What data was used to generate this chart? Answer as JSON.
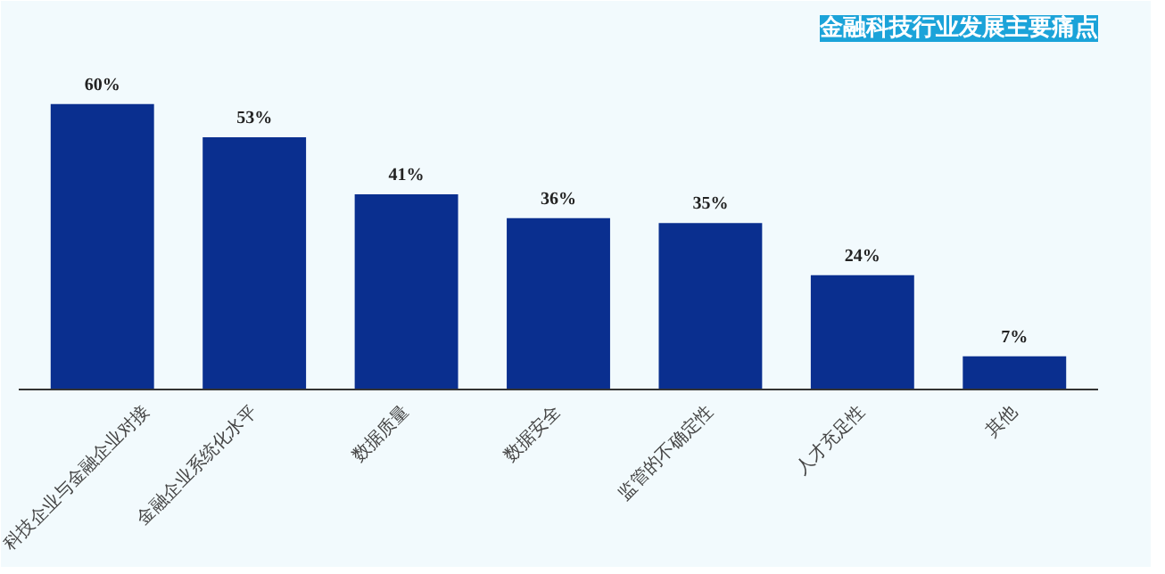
{
  "chart_data": {
    "type": "bar",
    "title": "金融科技行业发展主要痛点",
    "categories": [
      "科技企业与金融企业对接",
      "金融企业系统化水平",
      "数据质量",
      "数据安全",
      "监管的不确定性",
      "人才充足性",
      "其他"
    ],
    "values": [
      60,
      53,
      41,
      36,
      35,
      24,
      7
    ],
    "value_labels": [
      "60%",
      "53%",
      "41%",
      "36%",
      "35%",
      "24%",
      "7%"
    ],
    "color": "#0a2f8f",
    "grid": false
  }
}
